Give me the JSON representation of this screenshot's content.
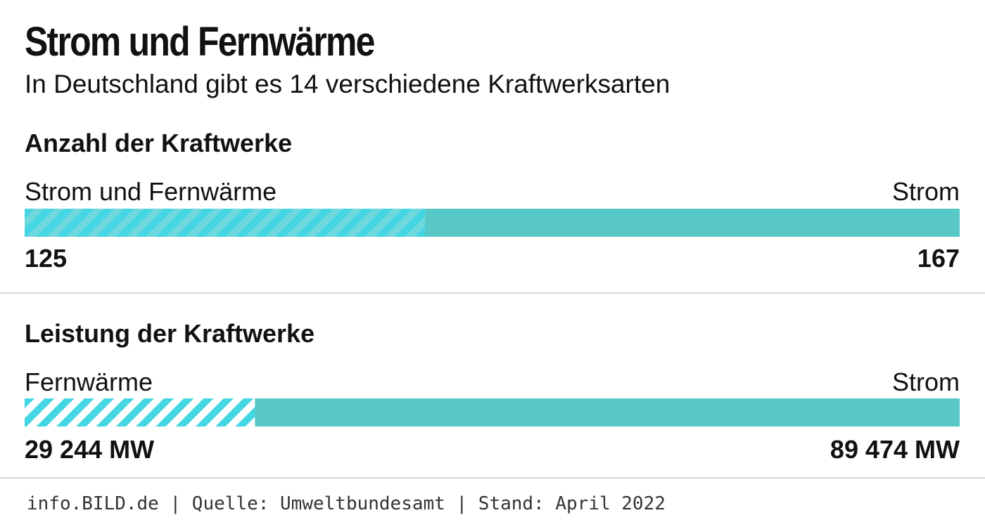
{
  "title": "Strom und Fernwärme",
  "subtitle": "In Deutschland gibt es 14 verschiedene Kraftwerksarten",
  "colors": {
    "solid": "#58c8c7",
    "hatch_light": "#6fd7de",
    "hatch_dark": "#44d6e2",
    "divider": "#cfd8dc"
  },
  "chart_data": [
    {
      "type": "bar",
      "stacked": true,
      "orientation": "horizontal",
      "title": "Anzahl der Kraftwerke",
      "series": [
        {
          "name": "Strom und Fernwärme",
          "value": 125,
          "value_label": "125",
          "pattern": "hatched"
        },
        {
          "name": "Strom",
          "value": 167,
          "value_label": "167",
          "pattern": "solid"
        }
      ]
    },
    {
      "type": "bar",
      "stacked": true,
      "orientation": "horizontal",
      "title": "Leistung der Kraftwerke",
      "series": [
        {
          "name": "Fernwärme",
          "value": 29244,
          "value_label": "29 244 MW",
          "pattern": "hatched"
        },
        {
          "name": "Strom",
          "value": 89474,
          "value_label": "89 474 MW",
          "pattern": "solid"
        }
      ]
    }
  ],
  "footer": "info.BILD.de | Quelle: Umweltbundesamt | Stand: April 2022"
}
